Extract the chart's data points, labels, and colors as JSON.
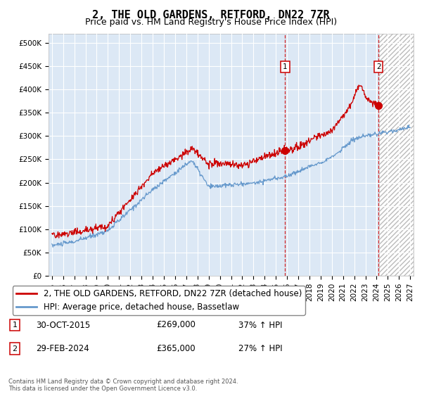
{
  "title": "2, THE OLD GARDENS, RETFORD, DN22 7ZR",
  "subtitle": "Price paid vs. HM Land Registry's House Price Index (HPI)",
  "ylabel_ticks": [
    "£0",
    "£50K",
    "£100K",
    "£150K",
    "£200K",
    "£250K",
    "£300K",
    "£350K",
    "£400K",
    "£450K",
    "£500K"
  ],
  "ytick_values": [
    0,
    50000,
    100000,
    150000,
    200000,
    250000,
    300000,
    350000,
    400000,
    450000,
    500000
  ],
  "ylim": [
    0,
    520000
  ],
  "xlim_start": 1994.7,
  "xlim_end": 2027.3,
  "xticks": [
    1995,
    1996,
    1997,
    1998,
    1999,
    2000,
    2001,
    2002,
    2003,
    2004,
    2005,
    2006,
    2007,
    2008,
    2009,
    2010,
    2011,
    2012,
    2013,
    2014,
    2015,
    2016,
    2017,
    2018,
    2019,
    2020,
    2021,
    2022,
    2023,
    2024,
    2025,
    2026,
    2027
  ],
  "red_line_color": "#cc0000",
  "blue_line_color": "#6699cc",
  "sale1_x": 2015.83,
  "sale1_y": 269000,
  "sale1_label": "1",
  "sale2_x": 2024.17,
  "sale2_y": 365000,
  "sale2_label": "2",
  "marker_box_color": "#cc0000",
  "vline_color": "#cc0000",
  "bg_color": "#dce8f5",
  "future_bg_color": "#ffffff",
  "hatch_color": "#bbbbbb",
  "future_start": 2024.25,
  "legend_label1": "2, THE OLD GARDENS, RETFORD, DN22 7ZR (detached house)",
  "legend_label2": "HPI: Average price, detached house, Bassetlaw",
  "annotation1_date": "30-OCT-2015",
  "annotation1_price": "£269,000",
  "annotation1_hpi": "37% ↑ HPI",
  "annotation2_date": "29-FEB-2024",
  "annotation2_price": "£365,000",
  "annotation2_hpi": "27% ↑ HPI",
  "footer": "Contains HM Land Registry data © Crown copyright and database right 2024.\nThis data is licensed under the Open Government Licence v3.0.",
  "title_fontsize": 11,
  "subtitle_fontsize": 9,
  "tick_fontsize": 7.5,
  "legend_fontsize": 8.5
}
